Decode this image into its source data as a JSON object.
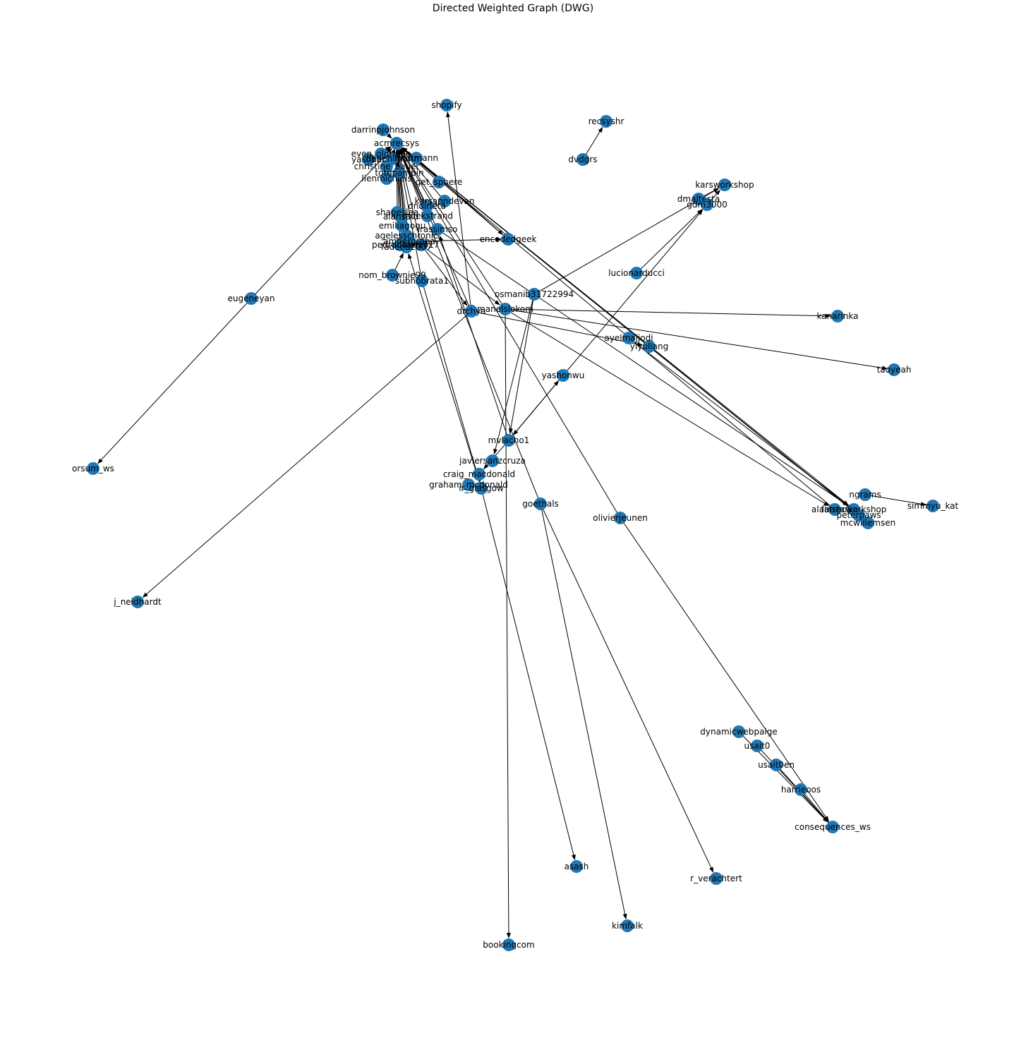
{
  "title": "Directed Weighted Graph (DWG)",
  "colors": {
    "node": "#1f77b4",
    "edge": "#000000",
    "background": "#ffffff"
  },
  "nodes": [
    {
      "id": "shopify",
      "label": "shopify"
    },
    {
      "id": "recsyshr",
      "label": "recsyshr"
    },
    {
      "id": "dvdgrs",
      "label": "dvdgrs"
    },
    {
      "id": "darrinpjohnson",
      "label": "darrinpjohnson"
    },
    {
      "id": "acmrecsys",
      "label": "acmrecsys"
    },
    {
      "id": "even_oldridge",
      "label": "even_oldridge"
    },
    {
      "id": "yashaar",
      "label": "yashaar"
    },
    {
      "id": "dbuehlmann",
      "label": "dbuehlmann"
    },
    {
      "id": "lhottmann",
      "label": "lhottmann"
    },
    {
      "id": "christine_bauer",
      "label": "christine_bauer"
    },
    {
      "id": "totopampin",
      "label": "totopampin"
    },
    {
      "id": "lienmichiels",
      "label": "lienmichiels"
    },
    {
      "id": "get_sphere",
      "label": "get_sphere"
    },
    {
      "id": "karsanndevan",
      "label": "karsanndevan"
    },
    {
      "id": "dnoirleta",
      "label": "dnoirleta"
    },
    {
      "id": "alansaid",
      "label": "alansaid"
    },
    {
      "id": "shapeslea",
      "label": "shapeslea"
    },
    {
      "id": "mdekstrand",
      "label": "mdekstrand"
    },
    {
      "id": "emiliagogu",
      "label": "emiliagogu"
    },
    {
      "id": "irassimso",
      "label": "irassimso"
    },
    {
      "id": "agelesschronic",
      "label": "agelesschronic"
    },
    {
      "id": "ambergraha",
      "label": "ambergraha"
    },
    {
      "id": "pedrodcarmo",
      "label": "pedrodcarmo"
    },
    {
      "id": "fadeed2007",
      "label": "fadeed2007"
    },
    {
      "id": "kiki1717",
      "label": "kiki1717"
    },
    {
      "id": "encodedgeek",
      "label": "encodedgeek"
    },
    {
      "id": "nom_brownie99",
      "label": "nom_brownie99"
    },
    {
      "id": "subhobrata1",
      "label": "subhobrata1"
    },
    {
      "id": "karsworkshop",
      "label": "karsworkshop"
    },
    {
      "id": "dmaltesta",
      "label": "dmaltesta"
    },
    {
      "id": "gdm3000",
      "label": "gdm3000"
    },
    {
      "id": "lucionarducci",
      "label": "lucionarducci"
    },
    {
      "id": "osmanib31722994",
      "label": "osmanib31722994"
    },
    {
      "id": "eugeneyan",
      "label": "eugeneyan"
    },
    {
      "id": "drchya",
      "label": "drchya"
    },
    {
      "id": "manelslokom",
      "label": "manelslokom"
    },
    {
      "id": "kanarinka",
      "label": "kanarinka"
    },
    {
      "id": "ayelmajjodi",
      "label": "ayelmajjodi"
    },
    {
      "id": "yiyuliang",
      "label": "yiyuliang"
    },
    {
      "id": "taoyeah",
      "label": "taoyeah"
    },
    {
      "id": "yashonwu",
      "label": "yashonwu"
    },
    {
      "id": "mvlacho1",
      "label": "mvlacho1"
    },
    {
      "id": "javiersanzcruza",
      "label": "javiersanzcruza"
    },
    {
      "id": "craig_macdonald",
      "label": "craig_macdonald"
    },
    {
      "id": "graham_mcdonald",
      "label": "graham_mcdonald"
    },
    {
      "id": "ir_glasgow",
      "label": "ir_glasgow"
    },
    {
      "id": "goethals",
      "label": "goethals"
    },
    {
      "id": "olivierjeunen",
      "label": "olivierjeunen"
    },
    {
      "id": "orsum_ws",
      "label": "orsum_ws"
    },
    {
      "id": "ngrams",
      "label": "ngrams"
    },
    {
      "id": "simmyu_kat",
      "label": "simmyu_kat"
    },
    {
      "id": "alainstarke",
      "label": "alainstarke"
    },
    {
      "id": "fatrecworkshop",
      "label": "fatrecworkshop"
    },
    {
      "id": "peterpaws",
      "label": "peterpaws"
    },
    {
      "id": "mcwillemsen",
      "label": "mcwillemsen"
    },
    {
      "id": "j_neidhardt",
      "label": "j_neidhardt"
    },
    {
      "id": "dynamicwebpaige",
      "label": "dynamicwebpaige"
    },
    {
      "id": "usait0",
      "label": "usait0"
    },
    {
      "id": "usait0en",
      "label": "usait0en"
    },
    {
      "id": "harrieoos",
      "label": "harrieoos"
    },
    {
      "id": "consequences_ws",
      "label": "consequences_ws"
    },
    {
      "id": "asash",
      "label": "asash"
    },
    {
      "id": "r_verachtert",
      "label": "r_verachtert"
    },
    {
      "id": "kimfalk",
      "label": "kimfalk"
    },
    {
      "id": "bookingcom",
      "label": "bookingcom"
    }
  ],
  "edges": [
    [
      "dvdgrs",
      "recsyshr"
    ],
    [
      "darrinpjohnson",
      "acmrecsys"
    ],
    [
      "even_oldridge",
      "acmrecsys"
    ],
    [
      "yashaar",
      "acmrecsys"
    ],
    [
      "dbuehlmann",
      "acmrecsys"
    ],
    [
      "lhottmann",
      "acmrecsys"
    ],
    [
      "christine_bauer",
      "acmrecsys"
    ],
    [
      "totopampin",
      "acmrecsys"
    ],
    [
      "lienmichiels",
      "acmrecsys"
    ],
    [
      "get_sphere",
      "acmrecsys"
    ],
    [
      "karsanndevan",
      "acmrecsys"
    ],
    [
      "dnoirleta",
      "acmrecsys"
    ],
    [
      "alansaid",
      "acmrecsys"
    ],
    [
      "shapeslea",
      "acmrecsys"
    ],
    [
      "mdekstrand",
      "acmrecsys"
    ],
    [
      "emiliagogu",
      "acmrecsys"
    ],
    [
      "irassimso",
      "acmrecsys"
    ],
    [
      "agelesschronic",
      "acmrecsys"
    ],
    [
      "ambergraha",
      "acmrecsys"
    ],
    [
      "pedrodcarmo",
      "acmrecsys"
    ],
    [
      "fadeed2007",
      "acmrecsys"
    ],
    [
      "kiki1717",
      "acmrecsys"
    ],
    [
      "encodedgeek",
      "acmrecsys"
    ],
    [
      "nom_brownie99",
      "fadeed2007"
    ],
    [
      "subhobrata1",
      "acmrecsys"
    ],
    [
      "drchya",
      "acmrecsys"
    ],
    [
      "manelslokom",
      "acmrecsys"
    ],
    [
      "drchya",
      "shopify"
    ],
    [
      "eugeneyan",
      "acmrecsys"
    ],
    [
      "eugeneyan",
      "orsum_ws"
    ],
    [
      "dmaltesta",
      "karsworkshop"
    ],
    [
      "gdm3000",
      "karsworkshop"
    ],
    [
      "osmanib31722994",
      "karsworkshop"
    ],
    [
      "lucionarducci",
      "gdm3000"
    ],
    [
      "yashonwu",
      "gdm3000"
    ],
    [
      "kiki1717",
      "drchya"
    ],
    [
      "kiki1717",
      "manelslokom"
    ],
    [
      "lhottmann",
      "encodedgeek"
    ],
    [
      "ambergraha",
      "encodedgeek"
    ],
    [
      "manelslokom",
      "kanarinka"
    ],
    [
      "manelslokom",
      "taoyeah"
    ],
    [
      "drchya",
      "yiyuliang"
    ],
    [
      "drchya",
      "j_neidhardt"
    ],
    [
      "mvlacho1",
      "yashonwu"
    ],
    [
      "yashonwu",
      "mvlacho1"
    ],
    [
      "osmanib31722994",
      "mvlacho1"
    ],
    [
      "osmanib31722994",
      "javiersanzcruza"
    ],
    [
      "mvlacho1",
      "craig_macdonald"
    ],
    [
      "mvlacho1",
      "irassimso"
    ],
    [
      "manelslokom",
      "bookingcom"
    ],
    [
      "goethals",
      "acmrecsys"
    ],
    [
      "goethals",
      "kimfalk"
    ],
    [
      "goethals",
      "r_verachtert"
    ],
    [
      "ir_glasgow",
      "asash"
    ],
    [
      "craig_macdonald",
      "ir_glasgow"
    ],
    [
      "graham_mcdonald",
      "ir_glasgow"
    ],
    [
      "ir_glasgow",
      "fadeed2007"
    ],
    [
      "olivierjeunen",
      "acmrecsys"
    ],
    [
      "olivierjeunen",
      "consequences_ws"
    ],
    [
      "ngrams",
      "simmyu_kat"
    ],
    [
      "alainstarke",
      "acmrecsys"
    ],
    [
      "fatrecworkshop",
      "acmrecsys"
    ],
    [
      "peterpaws",
      "acmrecsys"
    ],
    [
      "mcwillemsen",
      "acmrecsys"
    ],
    [
      "ayelmajjodi",
      "fatrecworkshop"
    ],
    [
      "yiyuliang",
      "mcwillemsen"
    ],
    [
      "manelslokom",
      "alainstarke"
    ],
    [
      "irassimso",
      "fatrecworkshop"
    ],
    [
      "dynamicwebpaige",
      "consequences_ws"
    ],
    [
      "usait0",
      "consequences_ws"
    ],
    [
      "usait0en",
      "consequences_ws"
    ],
    [
      "harrieoos",
      "consequences_ws"
    ],
    [
      "subhobrata1",
      "ir_glasgow"
    ]
  ]
}
